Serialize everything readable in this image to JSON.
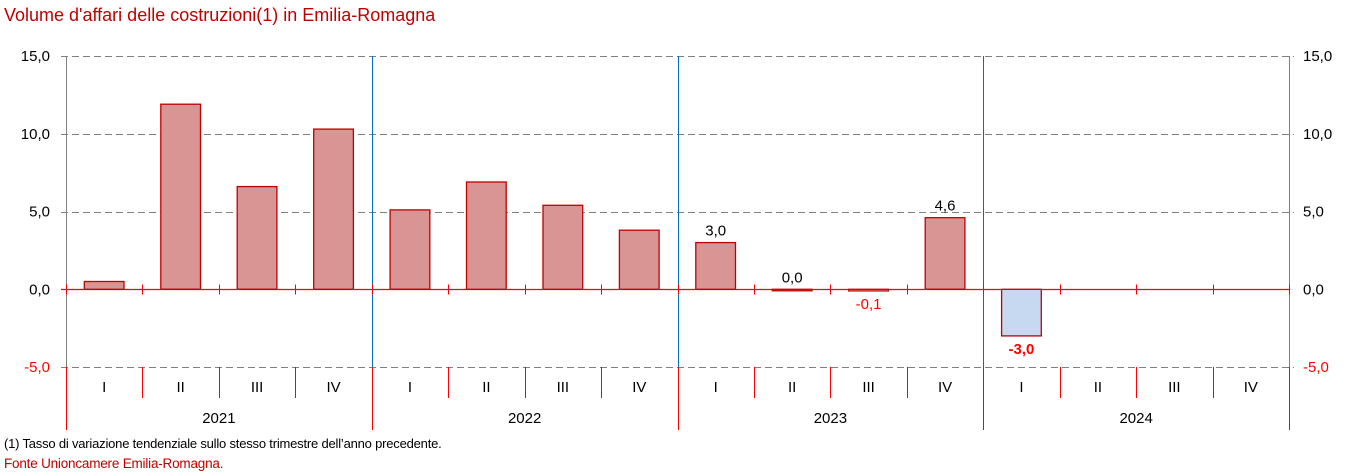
{
  "chart_data": {
    "type": "bar",
    "title": "Volume d'affari delle costruzioni(1) in Emilia-Romagna",
    "xlabel": "",
    "ylabel": "",
    "ylim": [
      -5,
      15
    ],
    "yticks": [
      15,
      10,
      5,
      0,
      -5
    ],
    "ytick_labels": [
      "15,0",
      "10,0",
      "5,0",
      "0,0",
      "-5,0"
    ],
    "grid": true,
    "legend": "none",
    "years": [
      "2021",
      "2022",
      "2023",
      "2024"
    ],
    "quarter_labels": [
      "I",
      "II",
      "III",
      "IV"
    ],
    "categories": [
      "2021 I",
      "2021 II",
      "2021 III",
      "2021 IV",
      "2022 I",
      "2022 II",
      "2022 III",
      "2022 IV",
      "2023 I",
      "2023 II",
      "2023 III",
      "2023 IV",
      "2024 I",
      "2024 II",
      "2024 III",
      "2024 IV"
    ],
    "values": [
      0.5,
      11.9,
      6.6,
      10.3,
      5.1,
      6.9,
      5.4,
      3.8,
      3.0,
      0.0,
      -0.1,
      4.6,
      -3.0,
      null,
      null,
      null
    ],
    "data_labels": [
      {
        "index": 8,
        "text": "3,0",
        "color": "#000000"
      },
      {
        "index": 9,
        "text": "0,0",
        "color": "#000000"
      },
      {
        "index": 10,
        "text": "-0,1",
        "color": "#ff0000"
      },
      {
        "index": 11,
        "text": "4,6",
        "color": "#000000"
      },
      {
        "index": 12,
        "text": "-3,0",
        "color": "#ff0000",
        "bold": true
      }
    ],
    "colors": {
      "positive_fill": "#d99594",
      "negative_fill_2024": "#c6d9f1",
      "bar_stroke": "#c00000",
      "zero_line": "#ff0000",
      "year_divider": "#0070c0",
      "grid": "#808080",
      "negative_tick": "#ff0000"
    }
  },
  "footnote": "(1) Tasso di variazione tendenziale sullo stesso trimestre dell’anno precedente.",
  "source": "Fonte Unioncamere Emilia-Romagna."
}
